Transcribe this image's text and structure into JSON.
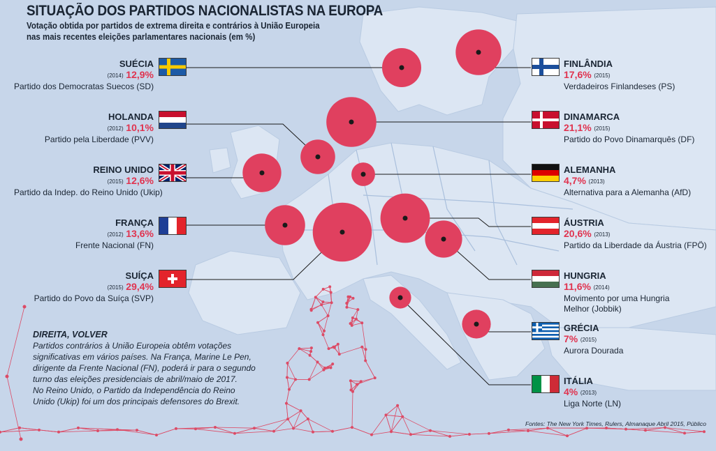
{
  "chart_data": {
    "type": "bubble-map",
    "title": "SITUAÇÃO DOS PARTIDOS NACIONALISTAS NA EUROPA",
    "subtitle": [
      "Votação obtida por partidos de extrema direita e contrários à União Europeia",
      "nas mais recentes eleições parlamentares nacionais (em %)"
    ],
    "unit": "%",
    "countries": [
      {
        "name": "SUÉCIA",
        "year": "(2014)",
        "value": 12.9,
        "value_label": "12,9%",
        "party": "Partido dos Democratas Suecos (SD)",
        "flag": "sweden",
        "side": "left"
      },
      {
        "name": "HOLANDA",
        "year": "(2012)",
        "value": 10.1,
        "value_label": "10,1%",
        "party": "Partido pela Liberdade (PVV)",
        "flag": "netherlands",
        "side": "left"
      },
      {
        "name": "REINO UNIDO",
        "year": "(2015)",
        "value": 12.6,
        "value_label": "12,6%",
        "party": "Partido da Indep. do Reino Unido (Ukip)",
        "flag": "uk",
        "side": "left"
      },
      {
        "name": "FRANÇA",
        "year": "(2012)",
        "value": 13.6,
        "value_label": "13,6%",
        "party": "Frente Nacional (FN)",
        "flag": "france",
        "side": "left"
      },
      {
        "name": "SUÍÇA",
        "year": "(2015)",
        "value": 29.4,
        "value_label": "29,4%",
        "party": "Partido do Povo da Suíça (SVP)",
        "flag": "switzerland",
        "side": "left"
      },
      {
        "name": "FINLÂNDIA",
        "year": "(2015)",
        "value": 17.6,
        "value_label": "17,6%",
        "party": "Verdadeiros Finlandeses (PS)",
        "flag": "finland",
        "side": "right"
      },
      {
        "name": "DINAMARCA",
        "year": "(2015)",
        "value": 21.1,
        "value_label": "21,1%",
        "party": "Partido do Povo Dinamarquês (DF)",
        "flag": "denmark",
        "side": "right"
      },
      {
        "name": "ALEMANHA",
        "year": "(2013)",
        "value": 4.7,
        "value_label": "4,7%",
        "party": "Alternativa para a Alemanha (AfD)",
        "flag": "germany",
        "side": "right"
      },
      {
        "name": "ÁUSTRIA",
        "year": "(2013)",
        "value": 20.6,
        "value_label": "20,6%",
        "party": "Partido da Liberdade da Áustria (FPÖ)",
        "flag": "austria",
        "side": "right"
      },
      {
        "name": "HUNGRIA",
        "year": "(2014)",
        "value": 11.6,
        "value_label": "11,6%",
        "party": "Movimento por uma Hungria Melhor (Jobbik)",
        "party_lines": [
          "Movimento por uma Hungria",
          "Melhor (Jobbik)"
        ],
        "flag": "hungary",
        "side": "right"
      },
      {
        "name": "GRÉCIA",
        "year": "(2015)",
        "value": 7,
        "value_label": "7%",
        "party": "Aurora Dourada",
        "flag": "greece",
        "side": "right"
      },
      {
        "name": "ITÁLIA",
        "year": "(2013)",
        "value": 4,
        "value_label": "4%",
        "party": "Liga Norte (LN)",
        "flag": "italy",
        "side": "right"
      }
    ]
  },
  "note": {
    "heading": "DIREITA, VOLVER",
    "lines": [
      "Partidos contrários à União Europeia obtêm votações",
      "significativas em vários países. Na França, Marine Le Pen,",
      "dirigente da Frente Nacional (FN), poderá ir para o segundo",
      "turno das eleições presidenciais de abril/maio de 2017.",
      "No Reino Unido, o Partido da Independência do Reino",
      "Unido (Ukip) foi um dos principais defensores do Brexit."
    ]
  },
  "source": "Fontes: The New York Times, Rulers, Almanaque Abril 2015, Público",
  "colors": {
    "bubble": "#e0405f",
    "value_text": "#e0334f",
    "map_land": "#dbe5f3",
    "map_sea": "#c7d6ea",
    "network": "#e0334f"
  }
}
